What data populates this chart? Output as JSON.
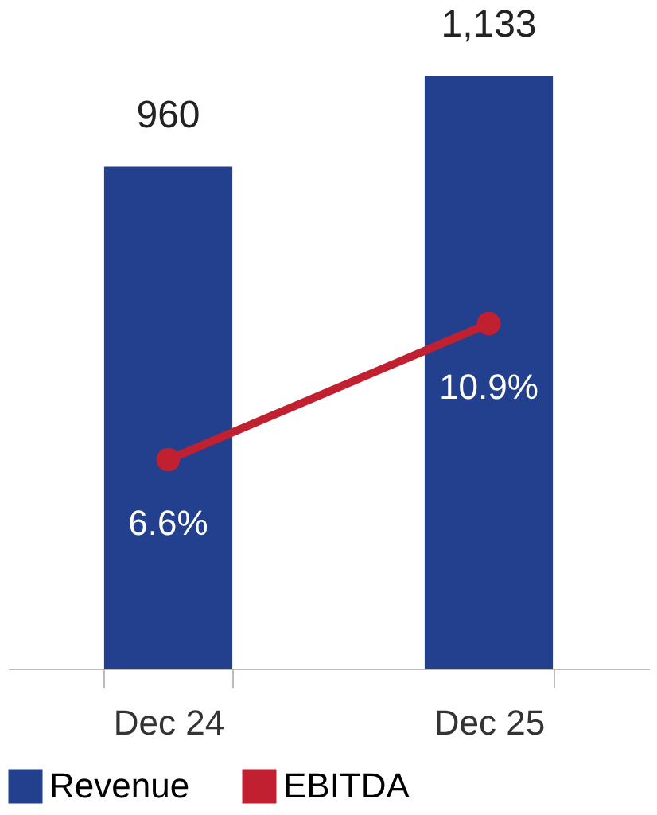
{
  "chart_data": {
    "type": "bar",
    "categories": [
      "Dec 24",
      "Dec 25"
    ],
    "series": [
      {
        "name": "Revenue",
        "color": "#23408e",
        "values": [
          960,
          1133
        ],
        "value_labels": [
          "960",
          "1,133"
        ]
      },
      {
        "name": "EBITDA",
        "type": "line",
        "axis": "y2",
        "color": "#c0202f",
        "values": [
          6.6,
          10.9
        ],
        "value_labels": [
          "6.6%",
          "10.9%"
        ],
        "marker": "circle"
      }
    ],
    "tick_labels": "x",
    "grid": false,
    "legend": "bottom"
  }
}
